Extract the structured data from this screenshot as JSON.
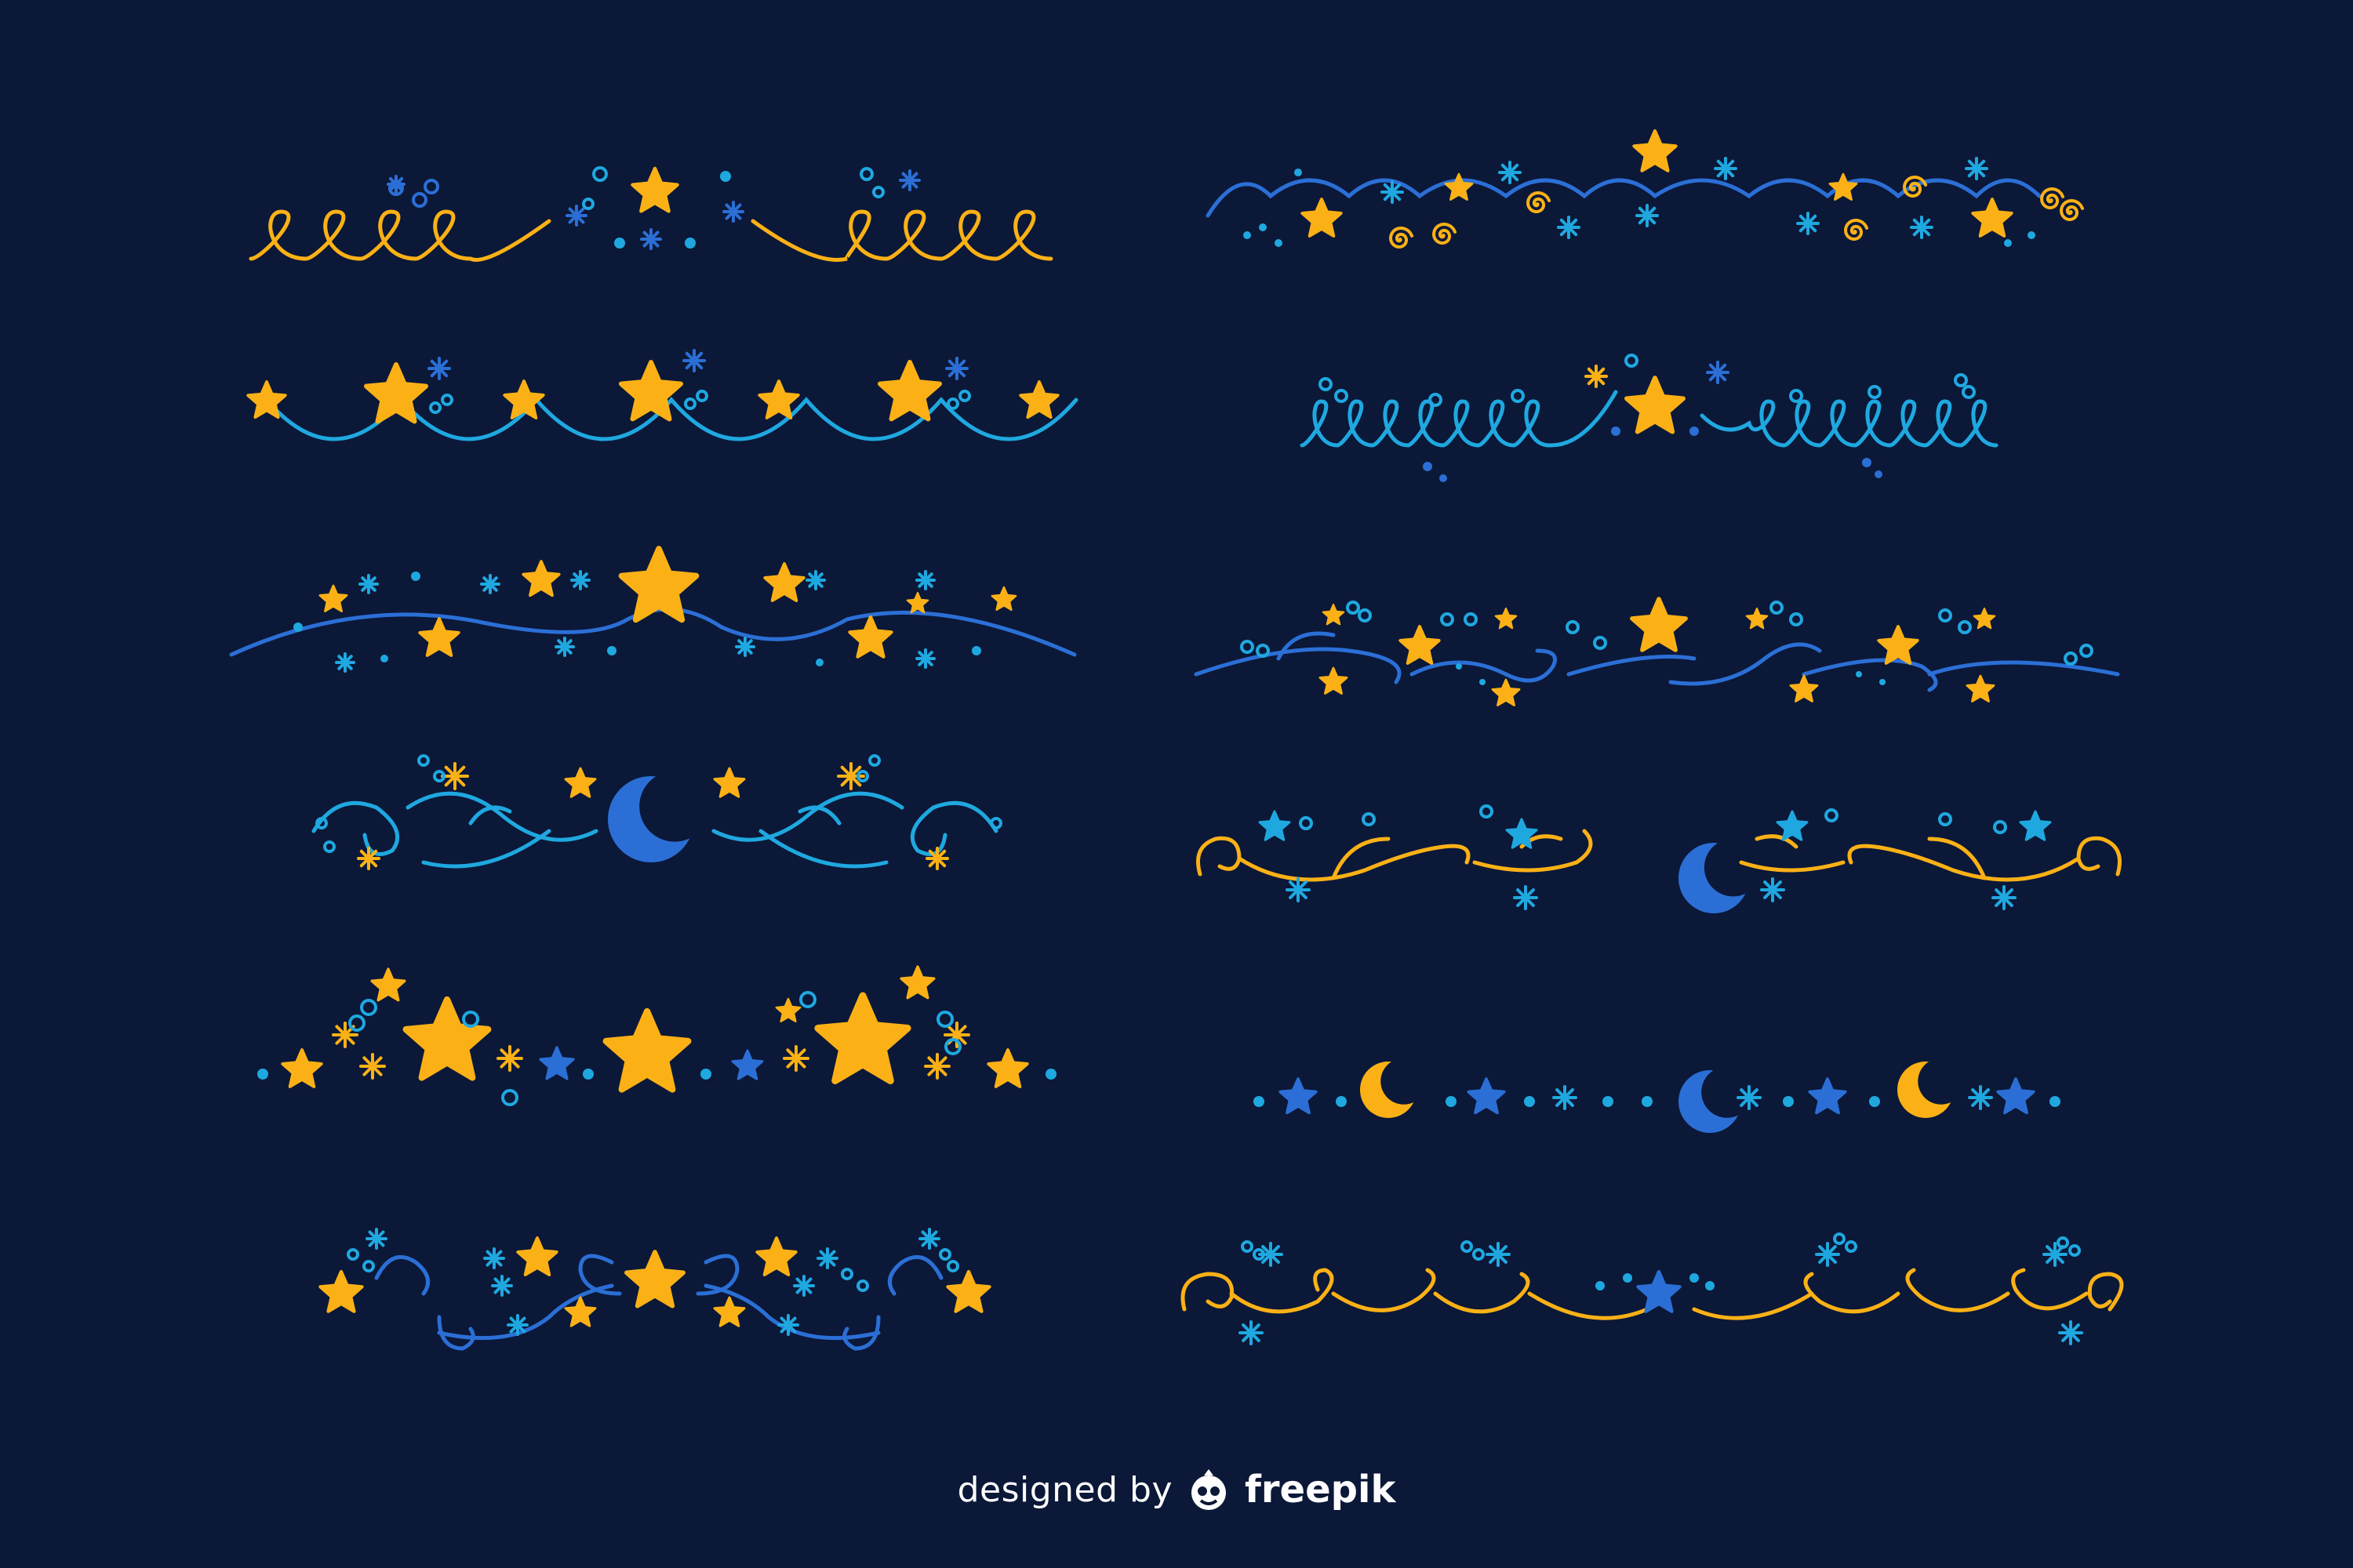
{
  "colors": {
    "background": "#0b1838",
    "gold": "#fbb116",
    "royal_blue": "#2b6fd6",
    "sky_blue": "#1fa8e0",
    "white": "#ffffff"
  },
  "dividers": [
    {
      "name": "gold-loops-divider",
      "line": "gold",
      "motif": [
        "star",
        "asterisk",
        "dot"
      ]
    },
    {
      "name": "star-garland-divider",
      "line": "sky_blue",
      "motif": [
        "star",
        "asterisk"
      ]
    },
    {
      "name": "wave-star-divider",
      "line": "royal_blue",
      "motif": [
        "star",
        "asterisk",
        "dot"
      ]
    },
    {
      "name": "crescent-swirl-divider",
      "line": "sky_blue",
      "motif": [
        "moon",
        "star",
        "asterisk"
      ]
    },
    {
      "name": "big-stars-divider",
      "line": "none",
      "motif": [
        "star",
        "asterisk",
        "dot"
      ]
    },
    {
      "name": "blue-swirl-star-divider",
      "line": "royal_blue",
      "motif": [
        "star",
        "asterisk"
      ]
    },
    {
      "name": "blue-arcs-divider",
      "line": "royal_blue",
      "motif": [
        "star",
        "spiral",
        "asterisk"
      ]
    },
    {
      "name": "sky-loops-divider",
      "line": "sky_blue",
      "motif": [
        "star",
        "asterisk",
        "dot"
      ]
    },
    {
      "name": "blue-curl-star-divider",
      "line": "royal_blue",
      "motif": [
        "star",
        "dot"
      ]
    },
    {
      "name": "gold-swirl-moon-divider",
      "line": "gold",
      "motif": [
        "moon",
        "star",
        "asterisk"
      ]
    },
    {
      "name": "moon-chain-divider",
      "line": "none",
      "motif": [
        "moon",
        "star",
        "asterisk",
        "dot"
      ]
    },
    {
      "name": "gold-scroll-divider",
      "line": "gold",
      "motif": [
        "star",
        "asterisk",
        "dot"
      ]
    }
  ],
  "footer": {
    "prefix": "designed by",
    "brand": "freepik",
    "brand_icon": "freepik-logo-icon"
  }
}
